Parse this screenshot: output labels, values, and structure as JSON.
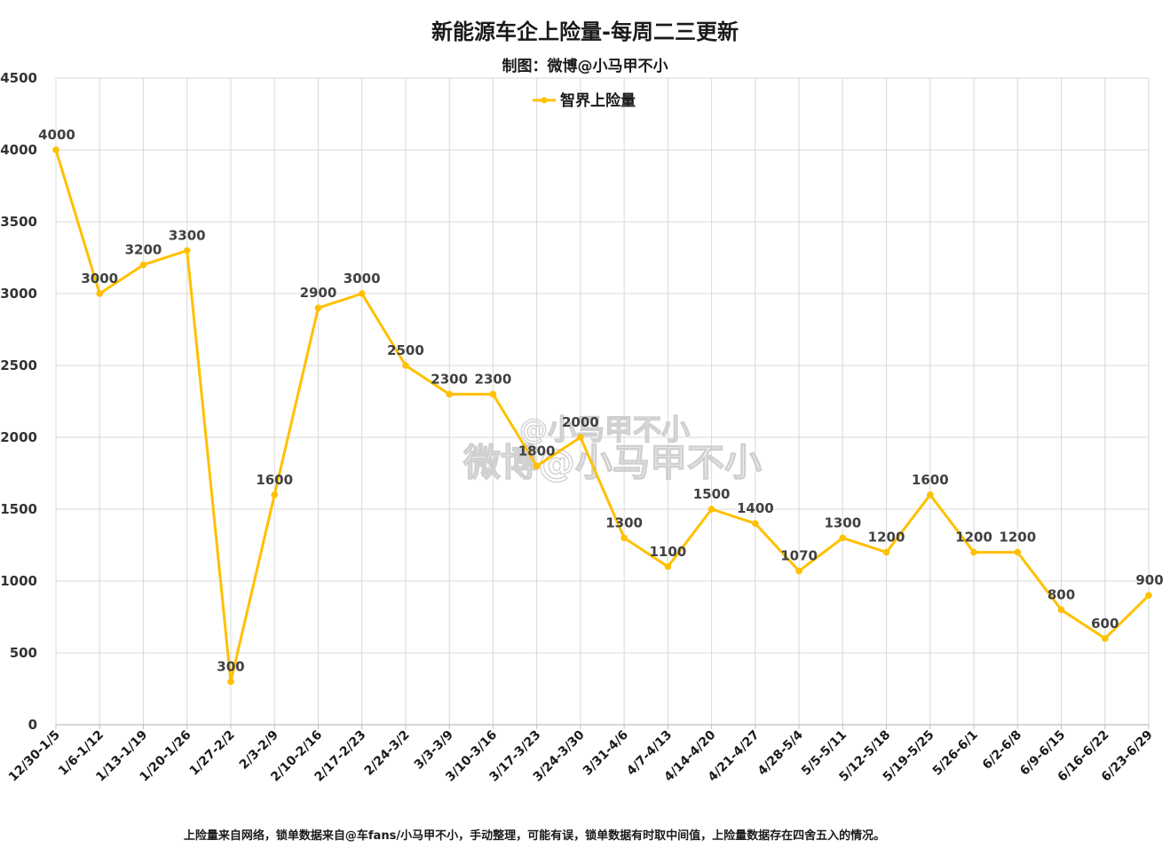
{
  "header": {
    "title": "新能源车企上险量-每周二三更新",
    "subtitle": "制图：微博@小马甲不小"
  },
  "footer": {
    "note": "上险量来自网络，锁单数据来自@车fans/小马甲不小，手动整理，可能有误，锁单数据有时取中间值，上险量数据存在四舍五入的情况。"
  },
  "watermark": {
    "line1": "@小马甲不小",
    "line2": "微博@小马甲不小"
  },
  "colors": {
    "series": "#FFC000",
    "grid": "#d9d9d9",
    "axis": "#bfbfbf"
  },
  "chart_data": {
    "type": "line",
    "title": "新能源车企上险量-每周二三更新",
    "subtitle": "制图：微博@小马甲不小",
    "categories": [
      "12/30-1/5",
      "1/6-1/12",
      "1/13-1/19",
      "1/20-1/26",
      "1/27-2/2",
      "2/3-2/9",
      "2/10-2/16",
      "2/17-2/23",
      "2/24-3/2",
      "3/3-3/9",
      "3/10-3/16",
      "3/17-3/23",
      "3/24-3/30",
      "3/31-4/6",
      "4/7-4/13",
      "4/14-4/20",
      "4/21-4/27",
      "4/28-5/4",
      "5/5-5/11",
      "5/12-5/18",
      "5/19-5/25",
      "5/26-6/1",
      "6/2-6/8",
      "6/9-6/15",
      "6/16-6/22",
      "6/23-6/29"
    ],
    "series": [
      {
        "name": "智界上险量",
        "color": "#FFC000",
        "values": [
          4000,
          3000,
          3200,
          3300,
          300,
          1600,
          2900,
          3000,
          2500,
          2300,
          2300,
          1800,
          2000,
          1300,
          1100,
          1500,
          1400,
          1070,
          1300,
          1200,
          1600,
          1200,
          1200,
          800,
          600,
          900
        ]
      }
    ],
    "ylim": [
      0,
      4500
    ],
    "yticks": [
      0,
      500,
      1000,
      1500,
      2000,
      2500,
      3000,
      3500,
      4000,
      4500
    ],
    "xlabel": "",
    "ylabel": "",
    "grid": true,
    "legend_position": "top-center"
  }
}
